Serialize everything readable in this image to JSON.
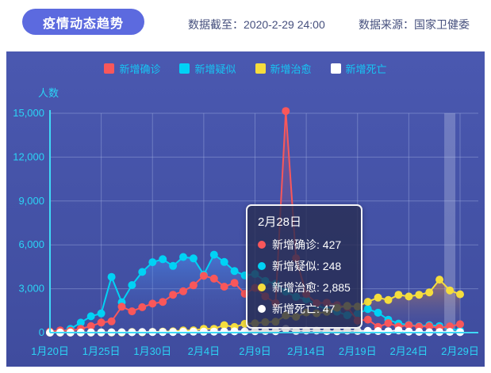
{
  "header": {
    "title": "疫情动态趋势",
    "data_as_of": "数据截至：2020-2-29 24:00",
    "data_source": "数据来源：国家卫健委"
  },
  "chart_data": {
    "type": "line",
    "ylabel": "人数",
    "ylim": [
      0,
      15000
    ],
    "yticks": [
      0,
      3000,
      6000,
      9000,
      12000,
      15000
    ],
    "ytick_labels": [
      "0",
      "3,000",
      "6,000",
      "9,000",
      "12,000",
      "15,000"
    ],
    "xtick_every": 5,
    "grid": true,
    "legend_position": "top",
    "highlight_index": 39,
    "dates": [
      "1月20日",
      "1月21日",
      "1月22日",
      "1月23日",
      "1月24日",
      "1月25日",
      "1月26日",
      "1月27日",
      "1月28日",
      "1月29日",
      "1月30日",
      "1月31日",
      "2月1日",
      "2月2日",
      "2月3日",
      "2月4日",
      "2月5日",
      "2月6日",
      "2月7日",
      "2月8日",
      "2月9日",
      "2月10日",
      "2月11日",
      "2月12日",
      "2月13日",
      "2月14日",
      "2月15日",
      "2月16日",
      "2月17日",
      "2月18日",
      "2月19日",
      "2月20日",
      "2月21日",
      "2月22日",
      "2月23日",
      "2月24日",
      "2月25日",
      "2月26日",
      "2月27日",
      "2月28日",
      "2月29日"
    ],
    "series": [
      {
        "name": "新增确诊",
        "color": "#f9575a",
        "area": "rgba(249,90,95,0.30)",
        "values": [
          77,
          149,
          131,
          259,
          444,
          688,
          769,
          1771,
          1459,
          1737,
          1982,
          2102,
          2590,
          2829,
          3235,
          3887,
          3694,
          3143,
          3399,
          2656,
          3062,
          2478,
          2015,
          15152,
          5090,
          2641,
          2009,
          2048,
          1886,
          1749,
          820,
          889,
          397,
          648,
          409,
          508,
          406,
          433,
          327,
          427,
          573
        ]
      },
      {
        "name": "新增疑似",
        "color": "#00d2f5",
        "area": "rgba(75,150,250,0.50)",
        "values": [
          27,
          53,
          257,
          680,
          1118,
          1309,
          3806,
          2077,
          3248,
          4148,
          4812,
          5019,
          4562,
          5173,
          5072,
          3971,
          5328,
          4833,
          4214,
          3916,
          4008,
          3536,
          3342,
          2807,
          2450,
          2277,
          1918,
          1563,
          1432,
          1185,
          1277,
          1614,
          1361,
          882,
          620,
          530,
          439,
          508,
          452,
          248,
          141
        ]
      },
      {
        "name": "新增治愈",
        "color": "#f5dd3d",
        "area": "rgba(245,150,60,0.50)",
        "values": [
          0,
          0,
          3,
          6,
          3,
          11,
          9,
          12,
          43,
          21,
          47,
          72,
          85,
          147,
          157,
          262,
          261,
          510,
          387,
          600,
          632,
          716,
          744,
          1171,
          1081,
          1373,
          1323,
          1425,
          1701,
          1824,
          1779,
          2109,
          2393,
          2230,
          2589,
          2467,
          2589,
          2750,
          3622,
          2885,
          2623
        ]
      },
      {
        "name": "新增死亡",
        "color": "#ffffff",
        "area": "none",
        "values": [
          2,
          3,
          8,
          8,
          16,
          15,
          24,
          26,
          26,
          38,
          43,
          46,
          45,
          57,
          64,
          65,
          73,
          73,
          86,
          89,
          97,
          108,
          97,
          254,
          121,
          143,
          142,
          105,
          98,
          136,
          114,
          118,
          109,
          97,
          150,
          71,
          52,
          29,
          44,
          47,
          35
        ]
      }
    ]
  },
  "tooltip": {
    "title": "2月28日",
    "rows": [
      {
        "text": "新增确诊: 427",
        "color": "#f9575a"
      },
      {
        "text": "新增疑似: 248",
        "color": "#00d2f5"
      },
      {
        "text": "新增治愈: 2,885",
        "color": "#f5dd3d"
      },
      {
        "text": "新增死亡: 47",
        "color": "#ffffff"
      }
    ]
  },
  "colors": {
    "pill_bg": "#5c6adf",
    "header_text": "#454f7d",
    "panel_bg": "#4452a6",
    "axis_line": "#3fd9f6",
    "grid_line": "rgba(170,185,230,0.40)",
    "tick_text": "#2bd4f5",
    "legend_text": "#17c5f3",
    "highlight_band": "rgba(205,213,240,0.30)"
  }
}
